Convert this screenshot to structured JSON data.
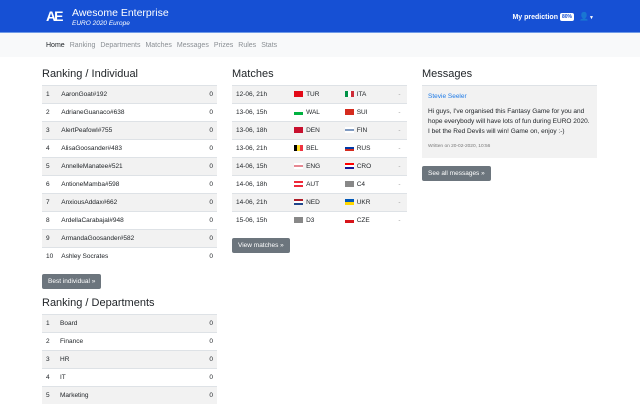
{
  "header": {
    "logo": "AE",
    "title": "Awesome Enterprise",
    "subtitle": "EURO 2020 Europe",
    "prediction_label": "My prediction",
    "prediction_badge": "80%",
    "user_icon": "user-icon",
    "brand_color": "#1650d4"
  },
  "nav": [
    "Home",
    "Ranking",
    "Departments",
    "Matches",
    "Messages",
    "Prizes",
    "Rules",
    "Stats"
  ],
  "ranking_individual": {
    "title": "Ranking / Individual",
    "rows": [
      [
        "1",
        "AaronGoat#192",
        "0"
      ],
      [
        "2",
        "AdrianeGuanaco#638",
        "0"
      ],
      [
        "3",
        "AlertPeafowl#755",
        "0"
      ],
      [
        "4",
        "AlisaGoosander#483",
        "0"
      ],
      [
        "5",
        "AnnelleManatee#521",
        "0"
      ],
      [
        "6",
        "AntioneMamba#598",
        "0"
      ],
      [
        "7",
        "AnxiousAddax#662",
        "0"
      ],
      [
        "8",
        "ArdellaCarabajal#948",
        "0"
      ],
      [
        "9",
        "ArmandaGoosander#582",
        "0"
      ],
      [
        "10",
        "Ashley Socrates",
        "0"
      ]
    ],
    "button": "Best individual »"
  },
  "ranking_departments": {
    "title": "Ranking / Departments",
    "rows": [
      [
        "1",
        "Board",
        "0"
      ],
      [
        "2",
        "Finance",
        "0"
      ],
      [
        "3",
        "HR",
        "0"
      ],
      [
        "4",
        "IT",
        "0"
      ],
      [
        "5",
        "Marketing",
        "0"
      ]
    ]
  },
  "matches": {
    "title": "Matches",
    "rows": [
      {
        "time": "12-06, 21h",
        "home": "TUR",
        "away": "ITA",
        "score": "-"
      },
      {
        "time": "13-06, 15h",
        "home": "WAL",
        "away": "SUI",
        "score": "-"
      },
      {
        "time": "13-06, 18h",
        "home": "DEN",
        "away": "FIN",
        "score": "-"
      },
      {
        "time": "13-06, 21h",
        "home": "BEL",
        "away": "RUS",
        "score": "-"
      },
      {
        "time": "14-06, 15h",
        "home": "ENG",
        "away": "CRO",
        "score": "-"
      },
      {
        "time": "14-06, 18h",
        "home": "AUT",
        "away": "C4",
        "score": "-"
      },
      {
        "time": "14-06, 21h",
        "home": "NED",
        "away": "UKR",
        "score": "-"
      },
      {
        "time": "15-06, 15h",
        "home": "D3",
        "away": "CZE",
        "score": "-"
      }
    ],
    "button": "View matches »"
  },
  "messages": {
    "title": "Messages",
    "author": "Stevie Seeler",
    "body": "Hi guys, I've organised this Fantasy Game for you and hope everybody will have lots of fun during EURO 2020. I bet the Red Devils will win! Game on, enjoy :-)",
    "date": "Written on 20-02-2020, 10:56",
    "button": "See all messages »"
  }
}
